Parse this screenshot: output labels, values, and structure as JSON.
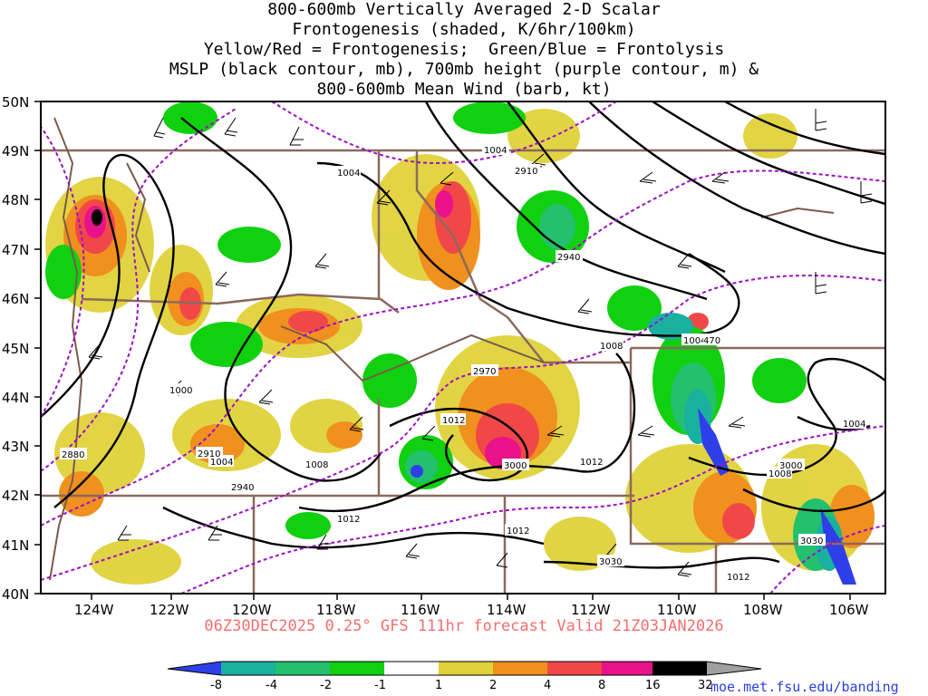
{
  "title_lines": [
    "800-600mb Vertically Averaged 2-D Scalar",
    "Frontogenesis (shaded, K/6hr/100km)",
    "Yellow/Red = Frontogenesis;  Green/Blue = Frontolysis",
    "MSLP (black contour, mb), 700mb height (purple contour, m) &",
    "800-600mb Mean Wind (barb, kt)"
  ],
  "footer": "06Z30DEC2025 0.25° GFS 111hr forecast Valid 21Z03JAN2026",
  "credit": "moe.met.fsu.edu/banding",
  "lat_labels": [
    "50N",
    "49N",
    "48N",
    "47N",
    "46N",
    "45N",
    "44N",
    "43N",
    "42N",
    "41N",
    "40N"
  ],
  "lon_labels": [
    "124W",
    "122W",
    "120W",
    "118W",
    "116W",
    "114W",
    "112W",
    "110W",
    "108W",
    "106W"
  ],
  "mslp_labels": [
    "1004",
    "1004",
    "1000",
    "1004",
    "1008",
    "1012",
    "1012",
    "1008",
    "1004",
    "1012",
    "1012",
    "1008",
    "1004",
    "1012"
  ],
  "height_labels": [
    "2910",
    "2940",
    "2970",
    "2880",
    "2910",
    "2940",
    "3000",
    "3000",
    "3030",
    "3030",
    "470"
  ],
  "colorbar": {
    "ticks": [
      "-8",
      "-4",
      "-2",
      "-1",
      "1",
      "2",
      "4",
      "8",
      "16",
      "32"
    ],
    "colors": [
      "#2f3fe8",
      "#19b0a0",
      "#23c06e",
      "#10d010",
      "#ffffff",
      "#e0d23a",
      "#f0901e",
      "#f04848",
      "#e8128a",
      "#000000",
      "#a0a0a0"
    ]
  },
  "colors": {
    "mslp": "#000000",
    "height": "#9d10c4",
    "state_borders": "#8b6a5c",
    "coast": "#7b5a4c"
  }
}
